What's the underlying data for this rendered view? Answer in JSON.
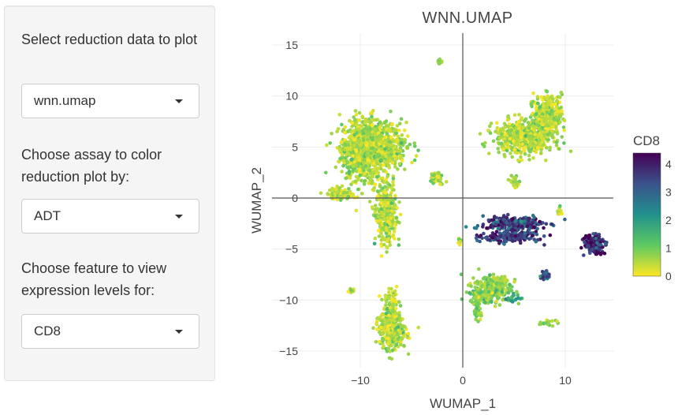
{
  "sidebar": {
    "reduction_label": "Select reduction data to plot",
    "reduction_value": "wnn.umap",
    "assay_label": "Choose assay to color reduction plot by:",
    "assay_value": "ADT",
    "feature_label": "Choose feature to view expression levels for:",
    "feature_value": "CD8"
  },
  "chart_data": {
    "type": "scatter",
    "title": "WNN.UMAP",
    "xlabel": "WUMAP_1",
    "ylabel": "WUMAP_2",
    "xlim": [
      -15,
      15
    ],
    "ylim": [
      -16,
      16
    ],
    "xticks": [
      -10,
      0,
      10
    ],
    "yticks": [
      -15,
      -10,
      -5,
      0,
      5,
      10,
      15
    ],
    "xtick_labels": [
      "−10",
      "0",
      "10"
    ],
    "ytick_labels": [
      "−15",
      "−10",
      "−5",
      "0",
      "5",
      "10",
      "15"
    ],
    "grid": true,
    "colorscale": "viridis (reversed)",
    "colorbar": {
      "title": "CD8",
      "range": [
        0,
        4.4
      ],
      "ticks": [
        0,
        1,
        2,
        3,
        4
      ],
      "tick_labels": [
        "0",
        "1",
        "2",
        "3",
        "4"
      ],
      "placement": "right"
    },
    "clusters": [
      {
        "x": -9.8,
        "y": 4.8,
        "sx": 1.4,
        "sy": 2.0,
        "value": 0.5,
        "n": 700
      },
      {
        "x": -8.2,
        "y": 5.0,
        "sx": 1.8,
        "sy": 1.6,
        "value": 0.5,
        "n": 600
      },
      {
        "x": -7.5,
        "y": -1.5,
        "sx": 0.7,
        "sy": 2.0,
        "value": 0.5,
        "n": 320
      },
      {
        "x": -12.0,
        "y": 0.4,
        "sx": 0.8,
        "sy": 0.4,
        "value": 0.5,
        "n": 90
      },
      {
        "x": 6.0,
        "y": 6.0,
        "sx": 1.9,
        "sy": 1.1,
        "value": 0.5,
        "n": 550
      },
      {
        "x": 8.3,
        "y": 8.2,
        "sx": 0.9,
        "sy": 1.2,
        "value": 0.5,
        "n": 350
      },
      {
        "x": 5.0,
        "y": 1.7,
        "sx": 0.3,
        "sy": 0.4,
        "value": 0.5,
        "n": 25
      },
      {
        "x": -2.5,
        "y": 2.0,
        "sx": 0.4,
        "sy": 0.4,
        "value": 0.5,
        "n": 45
      },
      {
        "x": -2.3,
        "y": 13.3,
        "sx": 0.2,
        "sy": 0.2,
        "value": 0.5,
        "n": 12
      },
      {
        "x": 2.9,
        "y": -8.9,
        "sx": 1.2,
        "sy": 0.9,
        "value": 0.8,
        "n": 320
      },
      {
        "x": 1.5,
        "y": -9.5,
        "sx": 0.5,
        "sy": 0.4,
        "value": 0.9,
        "n": 60
      },
      {
        "x": 1.5,
        "y": -11.0,
        "sx": 0.3,
        "sy": 0.6,
        "value": 0.8,
        "n": 40
      },
      {
        "x": -7.0,
        "y": -13.0,
        "sx": 1.0,
        "sy": 1.2,
        "value": 0.5,
        "n": 280
      },
      {
        "x": -7.0,
        "y": -10.5,
        "sx": 0.5,
        "sy": 1.0,
        "value": 0.5,
        "n": 80
      },
      {
        "x": 5.0,
        "y": -2.5,
        "sx": 2.0,
        "sy": 0.45,
        "value": 3.5,
        "n": 260
      },
      {
        "x": 4.5,
        "y": -3.8,
        "sx": 1.8,
        "sy": 0.35,
        "value": 3.6,
        "n": 180
      },
      {
        "x": 12.8,
        "y": -4.5,
        "sx": 0.6,
        "sy": 0.55,
        "value": 3.9,
        "n": 220
      },
      {
        "x": 8.0,
        "y": -7.6,
        "sx": 0.25,
        "sy": 0.3,
        "value": 3.2,
        "n": 25
      },
      {
        "x": 8.4,
        "y": -12.2,
        "sx": 0.6,
        "sy": 0.2,
        "value": 0.6,
        "n": 20
      },
      {
        "x": 5.0,
        "y": -9.8,
        "sx": 0.6,
        "sy": 0.3,
        "value": 1.8,
        "n": 20
      },
      {
        "x": 9.5,
        "y": -1.5,
        "sx": 0.2,
        "sy": 0.5,
        "value": 0.4,
        "n": 12
      },
      {
        "x": -11.0,
        "y": -9.1,
        "sx": 0.3,
        "sy": 0.15,
        "value": 0.5,
        "n": 8
      },
      {
        "x": -0.3,
        "y": -4.2,
        "sx": 0.15,
        "sy": 0.25,
        "value": 0.5,
        "n": 8
      }
    ]
  }
}
